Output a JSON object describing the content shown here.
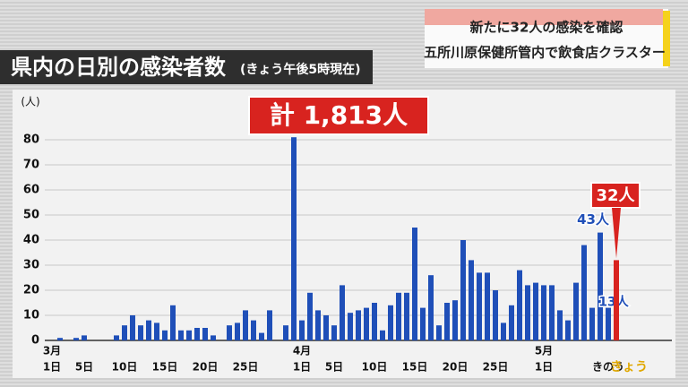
{
  "chart_data": {
    "type": "bar",
    "title": "県内の日別の感染者数",
    "subtitle": "(きょう午後5時現在)",
    "caption": [
      "新たに32人の感染を確認",
      "五所川原保健所管内で飲食店クラスター"
    ],
    "total": "計 1,813人",
    "y_unit": "(人)",
    "categories": [
      "1日",
      null,
      null,
      null,
      "5日",
      null,
      null,
      null,
      null,
      "10日",
      null,
      null,
      null,
      null,
      "15日",
      null,
      null,
      null,
      null,
      "20日",
      null,
      null,
      null,
      null,
      "25日",
      null,
      null,
      null,
      null,
      null,
      null,
      "1日",
      null,
      null,
      null,
      "5日",
      null,
      null,
      null,
      null,
      "10日",
      null,
      null,
      null,
      null,
      "15日",
      null,
      null,
      null,
      null,
      "20日",
      null,
      null,
      null,
      null,
      "25日",
      null,
      null,
      null,
      null,
      null,
      "1日",
      null,
      null,
      null,
      null,
      null,
      null,
      null,
      "きのう",
      "きょう"
    ],
    "months": [
      "3月",
      null,
      null,
      null,
      null,
      null,
      null,
      null,
      null,
      null,
      null,
      null,
      null,
      null,
      null,
      null,
      null,
      null,
      null,
      null,
      null,
      null,
      null,
      null,
      null,
      null,
      null,
      null,
      null,
      null,
      null,
      "4月",
      null,
      null,
      null,
      null,
      null,
      null,
      null,
      null,
      null,
      null,
      null,
      null,
      null,
      null,
      null,
      null,
      null,
      null,
      null,
      null,
      null,
      null,
      null,
      null,
      null,
      null,
      null,
      null,
      null,
      "5月",
      null,
      null,
      null,
      null,
      null,
      null,
      null,
      null,
      null
    ],
    "values": [
      0,
      1,
      0,
      1,
      2,
      0,
      0,
      0,
      2,
      6,
      10,
      6,
      8,
      7,
      4,
      14,
      4,
      4,
      5,
      5,
      2,
      0,
      6,
      7,
      12,
      8,
      3,
      12,
      0,
      6,
      81,
      8,
      19,
      12,
      10,
      6,
      22,
      11,
      12,
      13,
      15,
      4,
      14,
      19,
      19,
      45,
      13,
      26,
      6,
      15,
      16,
      40,
      32,
      27,
      27,
      20,
      7,
      14,
      28,
      22,
      23,
      22,
      22,
      12,
      8,
      23,
      38,
      13,
      43,
      13,
      32
    ],
    "value_labels": [
      null,
      null,
      null,
      null,
      null,
      null,
      null,
      null,
      null,
      null,
      null,
      null,
      null,
      null,
      null,
      null,
      null,
      null,
      null,
      null,
      null,
      null,
      null,
      null,
      null,
      null,
      null,
      null,
      null,
      null,
      null,
      null,
      null,
      null,
      null,
      null,
      null,
      null,
      null,
      null,
      null,
      null,
      null,
      null,
      null,
      null,
      null,
      null,
      null,
      null,
      null,
      null,
      null,
      null,
      null,
      null,
      null,
      null,
      null,
      null,
      null,
      null,
      null,
      null,
      null,
      null,
      null,
      null,
      "43人",
      "13人",
      "32人"
    ],
    "color": "#1f4fb8",
    "highlight_color": "#d8231f",
    "ylim": [
      0,
      90
    ],
    "yticks": [
      0,
      10,
      20,
      30,
      40,
      50,
      60,
      70,
      80
    ],
    "grid": true
  }
}
